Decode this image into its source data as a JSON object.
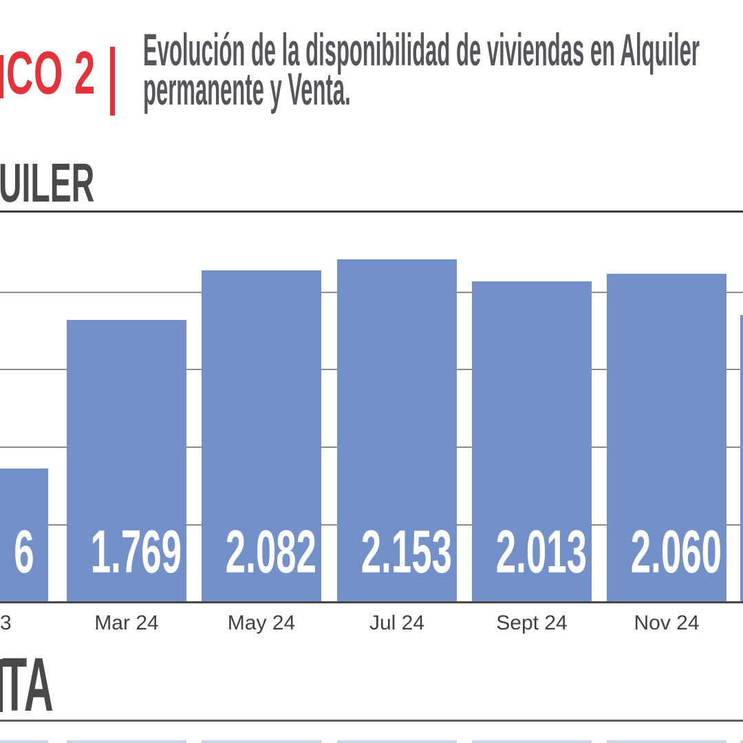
{
  "header": {
    "graphic_label_fragment": "CO 2",
    "accent_color": "#e4323b",
    "title_line1": "Evolución de la disponibilidad de viviendas en Alquiler",
    "title_line2": "permanente y Venta.",
    "title_color": "#54565b"
  },
  "sections": {
    "alquiler": {
      "heading_fragment": "UILER"
    },
    "venta": {
      "heading_fragment": "TA"
    }
  },
  "chart_data": {
    "type": "bar",
    "title": "",
    "xlabel": "",
    "ylabel": "",
    "bars": [
      {
        "category": "3",
        "value_label": "6",
        "value": 836,
        "clipped": "left"
      },
      {
        "category": "Mar 24",
        "value_label": "1.769",
        "value": 1769
      },
      {
        "category": "May 24",
        "value_label": "2.082",
        "value": 2082
      },
      {
        "category": "Jul 24",
        "value_label": "2.153",
        "value": 2153
      },
      {
        "category": "Sept 24",
        "value_label": "2.013",
        "value": 2013
      },
      {
        "category": "Nov 24",
        "value_label": "2.060",
        "value": 2060
      },
      {
        "category": "",
        "value_label": "",
        "value": 1800,
        "clipped": "right"
      }
    ],
    "clipped_bar_values_estimated": true,
    "ylim": [
      0,
      2500
    ],
    "gridlines_every": 500,
    "grid": true,
    "legend": "none",
    "bar_color": "#7390c8",
    "grid_color": "#8b8b8b",
    "axis_color": "#454545",
    "value_label_color": "#ffffff",
    "tick_label_color": "#3f4043"
  }
}
